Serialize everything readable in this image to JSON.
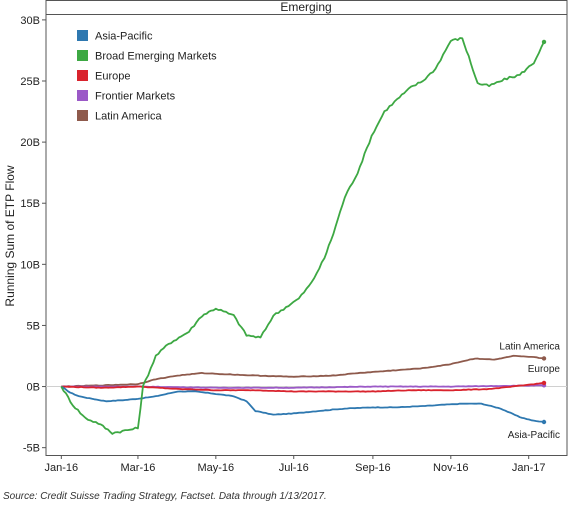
{
  "chart_data": {
    "type": "line",
    "title": "Emerging",
    "ylabel": "Running Sum of ETP Flow",
    "xlabel": "",
    "x_ticks": [
      "Jan-16",
      "Mar-16",
      "May-16",
      "Jul-16",
      "Sep-16",
      "Nov-16",
      "Jan-17"
    ],
    "x_range": [
      "2015-12-20",
      "2017-01-31"
    ],
    "y_ticks": [
      {
        "value": 30,
        "label": "30B"
      },
      {
        "value": 25,
        "label": "25B"
      },
      {
        "value": 20,
        "label": "20B"
      },
      {
        "value": 15,
        "label": "15B"
      },
      {
        "value": 10,
        "label": "10B"
      },
      {
        "value": 5,
        "label": "5B"
      },
      {
        "value": 0,
        "label": "0B"
      },
      {
        "value": -5,
        "label": "-5B"
      }
    ],
    "ylim": [
      -5.6,
      30.4
    ],
    "y_unit": "USD billions",
    "legend_position": "top-left",
    "grid": false,
    "series": [
      {
        "name": "Asia-Pacific",
        "color": "#2e78b0",
        "end_label": "Asia-Pacific",
        "points": [
          [
            "2016-01-01",
            0
          ],
          [
            "2016-01-08",
            -0.5
          ],
          [
            "2016-01-15",
            -0.8
          ],
          [
            "2016-01-25",
            -1.0
          ],
          [
            "2016-02-05",
            -1.2
          ],
          [
            "2016-02-20",
            -1.1
          ],
          [
            "2016-03-01",
            -1.0
          ],
          [
            "2016-03-15",
            -0.8
          ],
          [
            "2016-04-01",
            -0.4
          ],
          [
            "2016-04-15",
            -0.4
          ],
          [
            "2016-05-01",
            -0.6
          ],
          [
            "2016-05-15",
            -0.8
          ],
          [
            "2016-05-25",
            -1.2
          ],
          [
            "2016-06-01",
            -2.0
          ],
          [
            "2016-06-15",
            -2.3
          ],
          [
            "2016-07-01",
            -2.2
          ],
          [
            "2016-07-20",
            -2.0
          ],
          [
            "2016-08-10",
            -1.8
          ],
          [
            "2016-09-01",
            -1.7
          ],
          [
            "2016-09-20",
            -1.7
          ],
          [
            "2016-10-10",
            -1.6
          ],
          [
            "2016-10-25",
            -1.5
          ],
          [
            "2016-11-10",
            -1.4
          ],
          [
            "2016-11-25",
            -1.4
          ],
          [
            "2016-12-10",
            -1.8
          ],
          [
            "2016-12-25",
            -2.5
          ],
          [
            "2017-01-05",
            -2.8
          ],
          [
            "2017-01-13",
            -2.9
          ]
        ]
      },
      {
        "name": "Broad Emerging Markets",
        "color": "#3da843",
        "points": [
          [
            "2016-01-01",
            0
          ],
          [
            "2016-01-10",
            -1.5
          ],
          [
            "2016-01-20",
            -2.6
          ],
          [
            "2016-01-30",
            -3.0
          ],
          [
            "2016-02-10",
            -3.8
          ],
          [
            "2016-02-20",
            -3.6
          ],
          [
            "2016-03-01",
            -3.4
          ],
          [
            "2016-03-05",
            0
          ],
          [
            "2016-03-15",
            2.5
          ],
          [
            "2016-03-25",
            3.5
          ],
          [
            "2016-04-10",
            4.5
          ],
          [
            "2016-04-20",
            5.8
          ],
          [
            "2016-05-01",
            6.4
          ],
          [
            "2016-05-15",
            5.8
          ],
          [
            "2016-05-25",
            4.2
          ],
          [
            "2016-06-05",
            4.0
          ],
          [
            "2016-06-15",
            5.8
          ],
          [
            "2016-06-25",
            6.5
          ],
          [
            "2016-07-05",
            7.2
          ],
          [
            "2016-07-15",
            8.5
          ],
          [
            "2016-07-25",
            10.5
          ],
          [
            "2016-08-01",
            12.5
          ],
          [
            "2016-08-10",
            15.5
          ],
          [
            "2016-08-20",
            17.5
          ],
          [
            "2016-08-31",
            20.5
          ],
          [
            "2016-09-10",
            22.5
          ],
          [
            "2016-09-20",
            23.5
          ],
          [
            "2016-10-01",
            24.5
          ],
          [
            "2016-10-10",
            25.0
          ],
          [
            "2016-10-20",
            26.0
          ],
          [
            "2016-11-01",
            28.3
          ],
          [
            "2016-11-10",
            28.5
          ],
          [
            "2016-11-15",
            27.0
          ],
          [
            "2016-11-22",
            24.8
          ],
          [
            "2016-12-01",
            24.6
          ],
          [
            "2016-12-15",
            25.2
          ],
          [
            "2016-12-25",
            25.5
          ],
          [
            "2017-01-05",
            26.5
          ],
          [
            "2017-01-13",
            28.2
          ]
        ]
      },
      {
        "name": "Europe",
        "color": "#d9232d",
        "end_label": "Europe",
        "points": [
          [
            "2016-01-01",
            0
          ],
          [
            "2016-02-01",
            -0.1
          ],
          [
            "2016-03-01",
            0.0
          ],
          [
            "2016-04-01",
            -0.2
          ],
          [
            "2016-05-01",
            -0.3
          ],
          [
            "2016-06-01",
            -0.3
          ],
          [
            "2016-07-01",
            -0.4
          ],
          [
            "2016-08-01",
            -0.4
          ],
          [
            "2016-09-01",
            -0.4
          ],
          [
            "2016-10-01",
            -0.3
          ],
          [
            "2016-11-01",
            -0.3
          ],
          [
            "2016-12-01",
            -0.2
          ],
          [
            "2016-12-20",
            0.0
          ],
          [
            "2017-01-05",
            0.2
          ],
          [
            "2017-01-13",
            0.3
          ]
        ]
      },
      {
        "name": "Frontier Markets",
        "color": "#9b59c7",
        "points": [
          [
            "2016-01-01",
            0
          ],
          [
            "2016-03-01",
            0.0
          ],
          [
            "2016-05-01",
            -0.1
          ],
          [
            "2016-07-01",
            -0.1
          ],
          [
            "2016-09-01",
            0.0
          ],
          [
            "2016-11-01",
            0.0
          ],
          [
            "2017-01-13",
            0.1
          ]
        ]
      },
      {
        "name": "Latin America",
        "color": "#8e5a4c",
        "end_label": "Latin America",
        "points": [
          [
            "2016-01-01",
            0
          ],
          [
            "2016-02-01",
            0.1
          ],
          [
            "2016-03-01",
            0.2
          ],
          [
            "2016-03-15",
            0.6
          ],
          [
            "2016-04-01",
            0.9
          ],
          [
            "2016-04-20",
            1.1
          ],
          [
            "2016-05-10",
            1.0
          ],
          [
            "2016-06-01",
            0.9
          ],
          [
            "2016-07-01",
            0.8
          ],
          [
            "2016-08-01",
            0.9
          ],
          [
            "2016-08-20",
            1.1
          ],
          [
            "2016-09-15",
            1.3
          ],
          [
            "2016-10-10",
            1.5
          ],
          [
            "2016-10-30",
            1.8
          ],
          [
            "2016-11-20",
            2.3
          ],
          [
            "2016-12-05",
            2.2
          ],
          [
            "2016-12-20",
            2.5
          ],
          [
            "2017-01-05",
            2.4
          ],
          [
            "2017-01-13",
            2.3
          ]
        ]
      }
    ]
  },
  "source_note": "Source: Credit Suisse Trading Strategy, Factset.  Data through 1/13/2017."
}
